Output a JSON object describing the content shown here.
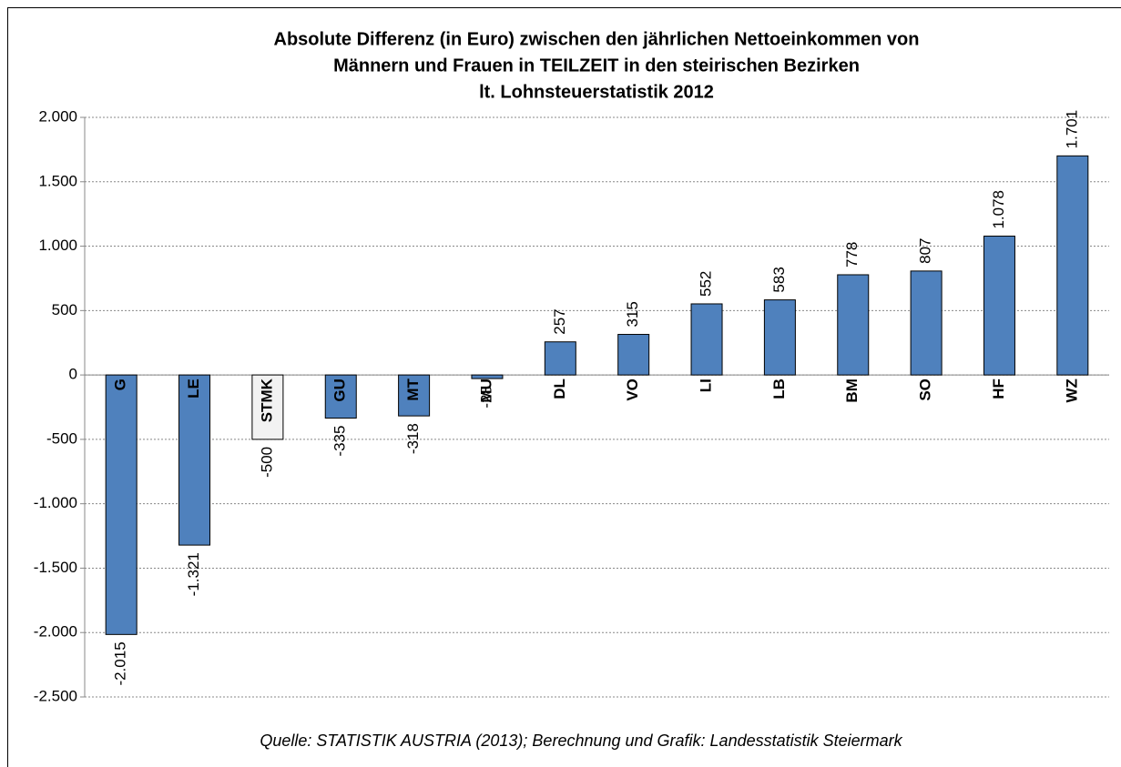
{
  "chart_data": {
    "type": "bar",
    "title": [
      "Absolute Differenz (in Euro) zwischen den jährlichen Nettoeinkommen von",
      "Männern und Frauen in TEILZEIT in den steirischen Bezirken",
      "lt. Lohnsteuerstatistik 2012"
    ],
    "categories": [
      "G",
      "LE",
      "STMK",
      "GU",
      "MT",
      "MU",
      "DL",
      "VO",
      "LI",
      "LB",
      "BM",
      "SO",
      "HF",
      "WZ"
    ],
    "values": [
      -2015,
      -1321,
      -500,
      -335,
      -318,
      -28,
      257,
      315,
      552,
      583,
      778,
      807,
      1078,
      1701
    ],
    "value_labels": [
      "-2.015",
      "-1.321",
      "-500",
      "-335",
      "-318",
      "-28",
      "257",
      "315",
      "552",
      "583",
      "778",
      "807",
      "1.078",
      "1.701"
    ],
    "colors": [
      "#4f81bd",
      "#4f81bd",
      "#f2f2f2",
      "#4f81bd",
      "#4f81bd",
      "#4f81bd",
      "#4f81bd",
      "#4f81bd",
      "#4f81bd",
      "#4f81bd",
      "#4f81bd",
      "#4f81bd",
      "#4f81bd",
      "#4f81bd"
    ],
    "ylim": [
      -2500,
      2000
    ],
    "yticks": [
      {
        "value": 2000,
        "label": "2.000"
      },
      {
        "value": 1500,
        "label": "1.500"
      },
      {
        "value": 1000,
        "label": "1.000"
      },
      500,
      0,
      -500,
      {
        "value": -1000,
        "label": "-1.000"
      },
      {
        "value": -1500,
        "label": "-1.500"
      },
      {
        "value": -2000,
        "label": "-2.000"
      },
      {
        "value": -2500,
        "label": "-2.500"
      }
    ],
    "grid": true,
    "source": "Quelle: STATISTIK AUSTRIA (2013); Berechnung und Grafik: Landesstatistik Steiermark"
  }
}
